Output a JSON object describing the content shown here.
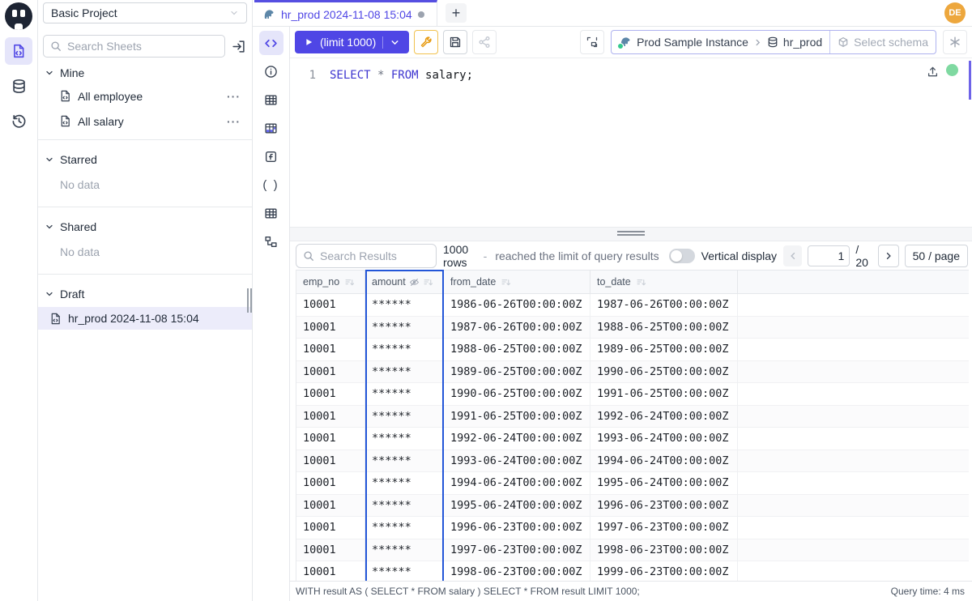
{
  "app": {
    "avatar_initials": "DE"
  },
  "colors": {
    "accent": "#4f46e5",
    "column_selection": "#2356d8",
    "wrench_amber": "#e79b13",
    "status_green": "#7fd9a1",
    "avatar_bg": "#eda73d",
    "active_item_bg": "#ececfa"
  },
  "icons": {
    "rail": [
      "worksheets-icon",
      "database-icon",
      "history-icon"
    ],
    "panel": [
      "code-icon",
      "info-icon",
      "table-icon",
      "table-colored-icon",
      "function-icon",
      "parentheses-icon",
      "table-icon",
      "diagram-icon"
    ],
    "misc": [
      "search-icon",
      "import-icon",
      "ellipsis-icon",
      "postgres-icon",
      "play-icon",
      "wrench-icon",
      "save-icon",
      "share-icon",
      "format-icon",
      "cube-icon",
      "openai-icon",
      "upload-icon",
      "sort-icon",
      "eye-off-icon",
      "chevron-down-icon"
    ]
  },
  "sidebar": {
    "project": "Basic Project",
    "search_placeholder": "Search Sheets",
    "sections": {
      "mine": {
        "label": "Mine",
        "items": [
          "All employee",
          "All salary"
        ]
      },
      "starred": {
        "label": "Starred",
        "empty": "No data"
      },
      "shared": {
        "label": "Shared",
        "empty": "No data"
      },
      "draft": {
        "label": "Draft",
        "items": [
          "hr_prod 2024-11-08 15:04"
        ]
      }
    }
  },
  "tabs": {
    "active": "hr_prod 2024-11-08 15:04",
    "new_tab": "+"
  },
  "toolbar": {
    "run_label": "(limit 1000)",
    "connection": {
      "instance": "Prod Sample Instance",
      "separator": "›",
      "database": "hr_prod",
      "schema_placeholder": "Select schema"
    }
  },
  "editor": {
    "line_number": "1",
    "code": {
      "kw1": "SELECT",
      "star": " * ",
      "kw2": "FROM",
      "rest": " salary;"
    }
  },
  "results": {
    "search_placeholder": "Search Results",
    "rows_count": "1000 rows",
    "dash": "-",
    "limit_note": "reached the limit of query results",
    "vertical_display": "Vertical display",
    "page": "1",
    "page_total": "/ 20",
    "page_size": "50 / page",
    "table": {
      "columns": [
        "emp_no",
        "amount",
        "from_date",
        "to_date"
      ],
      "rows": [
        [
          "10001",
          "******",
          "1986-06-26T00:00:00Z",
          "1987-06-26T00:00:00Z"
        ],
        [
          "10001",
          "******",
          "1987-06-26T00:00:00Z",
          "1988-06-25T00:00:00Z"
        ],
        [
          "10001",
          "******",
          "1988-06-25T00:00:00Z",
          "1989-06-25T00:00:00Z"
        ],
        [
          "10001",
          "******",
          "1989-06-25T00:00:00Z",
          "1990-06-25T00:00:00Z"
        ],
        [
          "10001",
          "******",
          "1990-06-25T00:00:00Z",
          "1991-06-25T00:00:00Z"
        ],
        [
          "10001",
          "******",
          "1991-06-25T00:00:00Z",
          "1992-06-24T00:00:00Z"
        ],
        [
          "10001",
          "******",
          "1992-06-24T00:00:00Z",
          "1993-06-24T00:00:00Z"
        ],
        [
          "10001",
          "******",
          "1993-06-24T00:00:00Z",
          "1994-06-24T00:00:00Z"
        ],
        [
          "10001",
          "******",
          "1994-06-24T00:00:00Z",
          "1995-06-24T00:00:00Z"
        ],
        [
          "10001",
          "******",
          "1995-06-24T00:00:00Z",
          "1996-06-23T00:00:00Z"
        ],
        [
          "10001",
          "******",
          "1996-06-23T00:00:00Z",
          "1997-06-23T00:00:00Z"
        ],
        [
          "10001",
          "******",
          "1997-06-23T00:00:00Z",
          "1998-06-23T00:00:00Z"
        ],
        [
          "10001",
          "******",
          "1998-06-23T00:00:00Z",
          "1999-06-23T00:00:00Z"
        ]
      ]
    },
    "footer_sql": "WITH result AS ( SELECT * FROM salary ) SELECT * FROM result LIMIT 1000;",
    "query_time": "Query time: 4 ms"
  }
}
